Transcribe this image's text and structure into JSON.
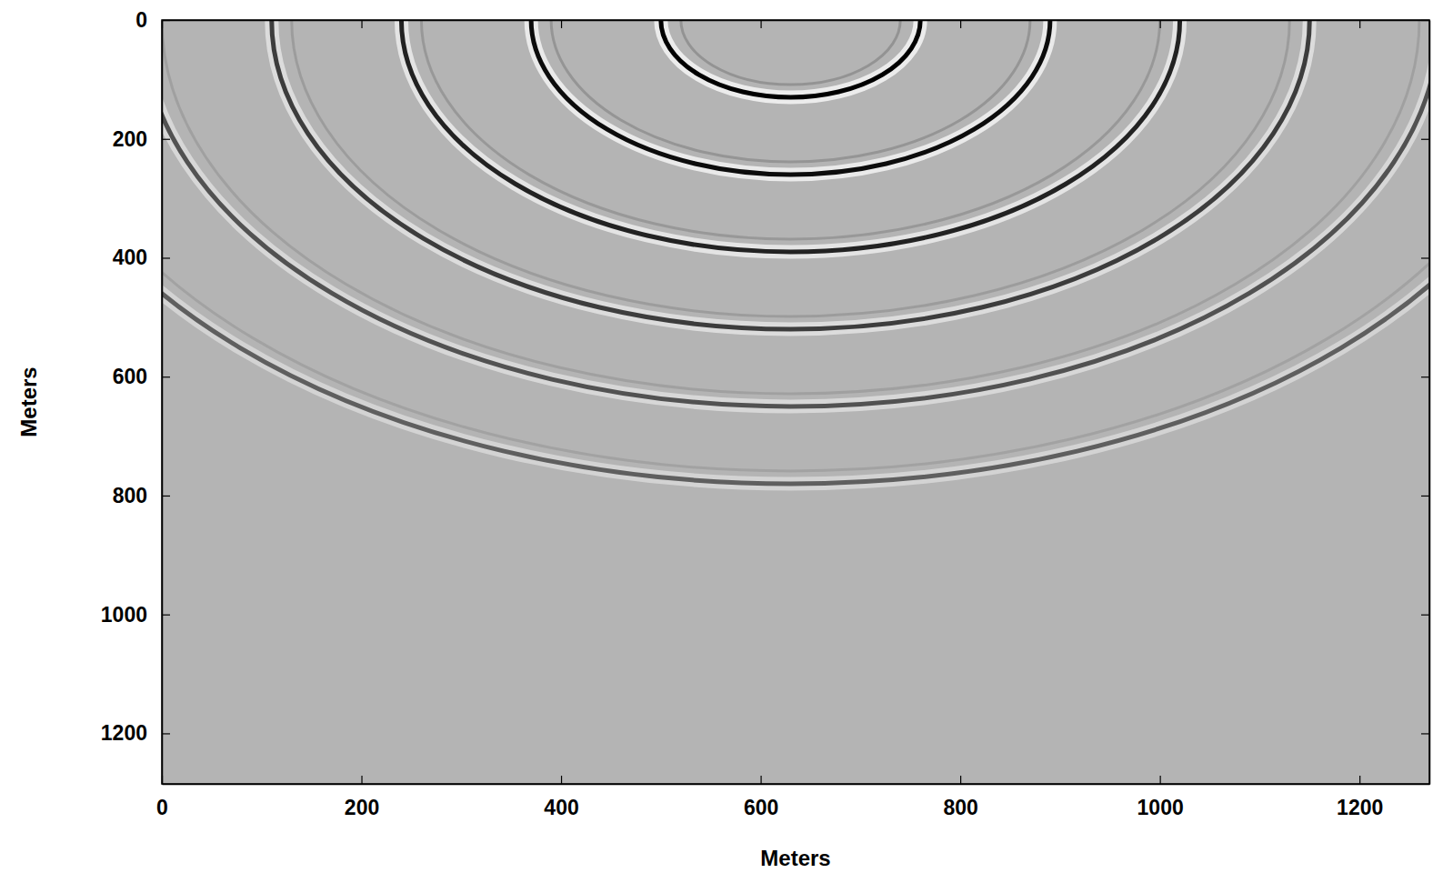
{
  "chart_data": {
    "type": "wavefield",
    "x_label": "Meters",
    "y_label": "Meters",
    "xlim": [
      0,
      1270
    ],
    "ylim": [
      1285,
      0
    ],
    "xticks": [
      0,
      200,
      400,
      600,
      800,
      1000,
      1200
    ],
    "yticks": [
      0,
      200,
      400,
      600,
      800,
      1000,
      1200
    ],
    "source": [
      630,
      0
    ],
    "color": "#000000",
    "wavefronts": [
      {
        "radius": 130,
        "amplitude": 1.0
      },
      {
        "radius": 260,
        "amplitude": 0.95
      },
      {
        "radius": 390,
        "amplitude": 0.85
      },
      {
        "radius": 520,
        "amplitude": 0.72
      },
      {
        "radius": 650,
        "amplitude": 0.62
      },
      {
        "radius": 780,
        "amplitude": 0.55
      }
    ]
  }
}
